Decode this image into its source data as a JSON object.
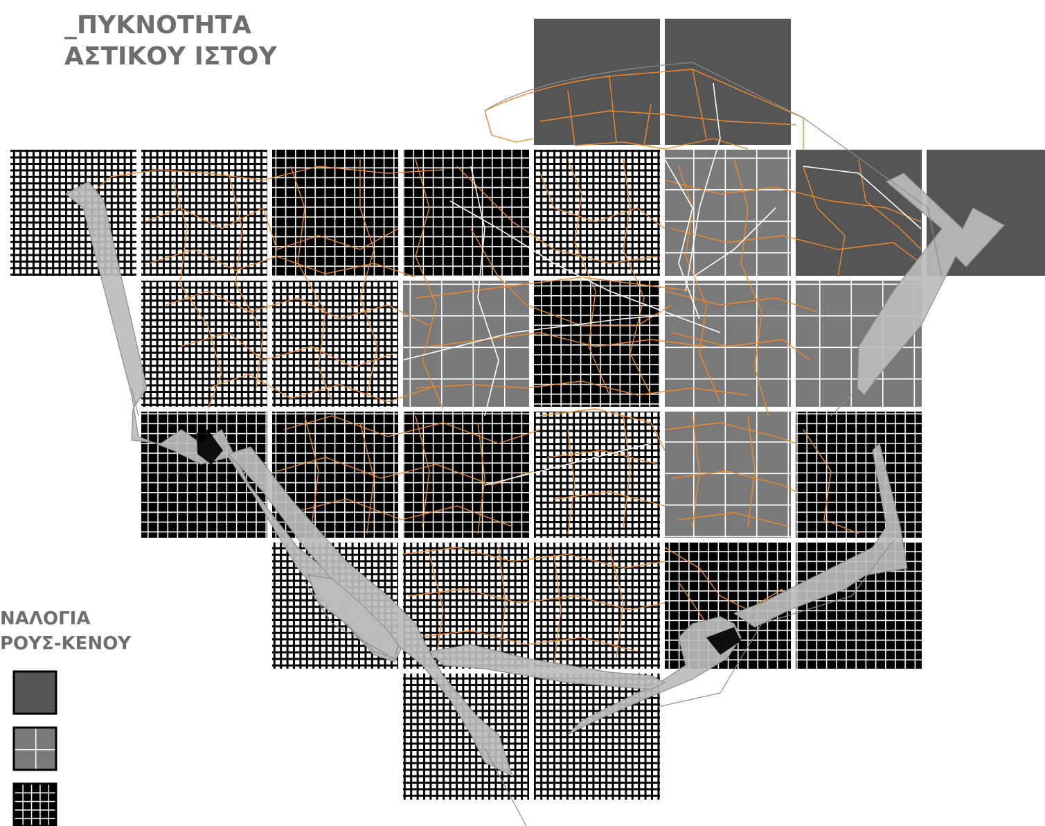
{
  "title": {
    "line1": "_ΠΥΚΝΟΤΗΤΑ",
    "line2": "ΑΣΤΙΚΟΥ ΙΣΤΟΥ"
  },
  "legend": {
    "heading_line1": "ΝΑΛΟΓΙΑ",
    "heading_line2": "ΡΟΥΣ-ΚΕΝΟΥ",
    "items": [
      {
        "name": "solid-dark",
        "fill": "#555555"
      },
      {
        "name": "medium-grid",
        "fill": "#7a7a7a"
      },
      {
        "name": "dense-grid",
        "fill": "#000000"
      }
    ]
  },
  "colors": {
    "solid": "#555555",
    "medium": "#7a7a7a",
    "black": "#000000",
    "streets": "#f08a2c",
    "outline": "#9a9a9a",
    "roads_fill": "#bcbcbc"
  },
  "density_classes": [
    "solid",
    "medium",
    "black",
    "fine"
  ],
  "grid": {
    "rows": [
      [
        "",
        "",
        "",
        "",
        "solid",
        "solid",
        "",
        ""
      ],
      [
        "fine",
        "fine",
        "black",
        "black",
        "fine",
        "medium",
        "solid",
        "solid"
      ],
      [
        "",
        "fine",
        "fine",
        "medium",
        "black",
        "medium",
        "medium",
        ""
      ],
      [
        "",
        "black",
        "black",
        "black",
        "fine",
        "medium",
        "black",
        ""
      ],
      [
        "",
        "",
        "fine",
        "fine",
        "fine",
        "black",
        "black",
        ""
      ],
      [
        "",
        "",
        "",
        "fine",
        "fine",
        "",
        "",
        ""
      ]
    ]
  }
}
